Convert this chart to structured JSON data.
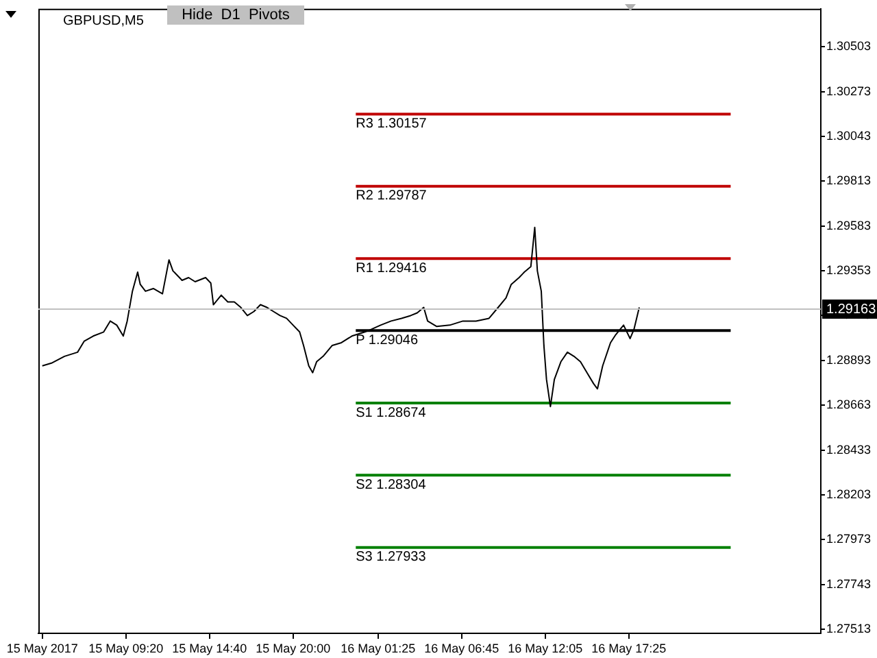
{
  "chart_data": {
    "type": "line",
    "title": "GBPUSD,M5",
    "annotations": [
      "Hide  D1  Pivots"
    ],
    "xlim": [
      "2017-05-15T03:45",
      "2017-05-17T05:40"
    ],
    "xticks": [
      {
        "value": "2017-05-15T04:00",
        "label": "15 May 2017"
      },
      {
        "value": "2017-05-15T09:20",
        "label": "15 May 09:20"
      },
      {
        "value": "2017-05-15T14:40",
        "label": "15 May 14:40"
      },
      {
        "value": "2017-05-15T20:00",
        "label": "15 May 20:00"
      },
      {
        "value": "2017-05-16T01:25",
        "label": "16 May 01:25"
      },
      {
        "value": "2017-05-16T06:45",
        "label": "16 May 06:45"
      },
      {
        "value": "2017-05-16T12:05",
        "label": "16 May 12:05"
      },
      {
        "value": "2017-05-16T17:25",
        "label": "16 May 17:25"
      }
    ],
    "ylim": [
      1.27492,
      1.30698
    ],
    "yticks": [
      1.27513,
      1.27743,
      1.27973,
      1.28203,
      1.28433,
      1.28663,
      1.28893,
      1.29123,
      1.29353,
      1.29583,
      1.29813,
      1.30043,
      1.30273,
      1.30503
    ],
    "grid": false,
    "legend": false,
    "marker": "none",
    "line_style": "solid",
    "ref_lines": [
      {
        "axis": "y",
        "value": 1.29163,
        "label": "1.29163",
        "color": "#c0c0c0"
      }
    ],
    "series": [
      {
        "color": "#000000",
        "x": [
          "2017-05-15T04:00",
          "2017-05-15T04:35",
          "2017-05-15T05:25",
          "2017-05-15T06:15",
          "2017-05-15T06:40",
          "2017-05-15T07:15",
          "2017-05-15T07:55",
          "2017-05-15T08:20",
          "2017-05-15T08:45",
          "2017-05-15T09:10",
          "2017-05-15T09:25",
          "2017-05-15T09:45",
          "2017-05-15T10:05",
          "2017-05-15T10:15",
          "2017-05-15T10:35",
          "2017-05-15T11:05",
          "2017-05-15T11:40",
          "2017-05-15T12:05",
          "2017-05-15T12:20",
          "2017-05-15T12:55",
          "2017-05-15T13:20",
          "2017-05-15T13:45",
          "2017-05-15T14:25",
          "2017-05-15T14:45",
          "2017-05-15T14:55",
          "2017-05-15T15:25",
          "2017-05-15T15:50",
          "2017-05-15T16:15",
          "2017-05-15T16:40",
          "2017-05-15T17:05",
          "2017-05-15T17:30",
          "2017-05-15T17:55",
          "2017-05-15T18:20",
          "2017-05-15T18:45",
          "2017-05-15T19:10",
          "2017-05-15T19:35",
          "2017-05-15T20:00",
          "2017-05-15T20:25",
          "2017-05-15T20:40",
          "2017-05-15T21:00",
          "2017-05-15T21:15",
          "2017-05-15T21:30",
          "2017-05-15T21:55",
          "2017-05-15T22:30",
          "2017-05-15T23:05",
          "2017-05-15T23:45",
          "2017-05-16T00:35",
          "2017-05-16T01:00",
          "2017-05-16T01:35",
          "2017-05-16T02:15",
          "2017-05-16T02:55",
          "2017-05-16T03:30",
          "2017-05-16T03:55",
          "2017-05-16T04:20",
          "2017-05-16T04:35",
          "2017-05-16T05:10",
          "2017-05-16T06:00",
          "2017-05-16T06:50",
          "2017-05-16T07:40",
          "2017-05-16T08:30",
          "2017-05-16T09:05",
          "2017-05-16T09:35",
          "2017-05-16T09:55",
          "2017-05-16T10:25",
          "2017-05-16T10:45",
          "2017-05-16T11:10",
          "2017-05-16T11:25",
          "2017-05-16T11:35",
          "2017-05-16T11:50",
          "2017-05-16T12:00",
          "2017-05-16T12:10",
          "2017-05-16T12:25",
          "2017-05-16T12:40",
          "2017-05-16T13:05",
          "2017-05-16T13:30",
          "2017-05-16T13:55",
          "2017-05-16T14:20",
          "2017-05-16T14:45",
          "2017-05-16T15:10",
          "2017-05-16T15:25",
          "2017-05-16T15:45",
          "2017-05-16T16:15",
          "2017-05-16T16:35",
          "2017-05-16T17:05",
          "2017-05-16T17:30",
          "2017-05-16T17:45",
          "2017-05-16T18:05"
        ],
        "values": [
          1.28865,
          1.28879,
          1.28914,
          1.28935,
          1.28991,
          1.29018,
          1.29039,
          1.29095,
          1.29074,
          1.29018,
          1.29095,
          1.29248,
          1.29346,
          1.29283,
          1.29248,
          1.29262,
          1.29235,
          1.29409,
          1.29353,
          1.29304,
          1.29318,
          1.29297,
          1.29318,
          1.2929,
          1.29179,
          1.29228,
          1.29193,
          1.29193,
          1.29165,
          1.29123,
          1.29144,
          1.29179,
          1.29165,
          1.29144,
          1.29123,
          1.29109,
          1.29074,
          1.29039,
          1.2897,
          1.28865,
          1.2883,
          1.28886,
          1.28914,
          1.2897,
          1.28984,
          1.29018,
          1.29039,
          1.29053,
          1.29074,
          1.29095,
          1.29109,
          1.29123,
          1.29137,
          1.29165,
          1.29095,
          1.29067,
          1.29074,
          1.29095,
          1.29095,
          1.29109,
          1.29165,
          1.29214,
          1.29283,
          1.29318,
          1.29346,
          1.29374,
          1.29576,
          1.29353,
          1.29248,
          1.2897,
          1.28795,
          1.28656,
          1.28795,
          1.28886,
          1.28935,
          1.28914,
          1.28886,
          1.2883,
          1.28774,
          1.28747,
          1.28865,
          1.28984,
          1.29025,
          1.29074,
          1.29005,
          1.29053,
          1.29165
        ]
      },
      {
        "name": "R3 1.30157",
        "color": "#c00000",
        "x": [
          "2017-05-16T00:00",
          "2017-05-16T23:55"
        ],
        "values": [
          1.30157,
          1.30157
        ]
      },
      {
        "name": "R2 1.29787",
        "color": "#c00000",
        "x": [
          "2017-05-16T00:00",
          "2017-05-16T23:55"
        ],
        "values": [
          1.29787,
          1.29787
        ]
      },
      {
        "name": "R1 1.29416",
        "color": "#c00000",
        "x": [
          "2017-05-16T00:00",
          "2017-05-16T23:55"
        ],
        "values": [
          1.29416,
          1.29416
        ]
      },
      {
        "name": "P 1.29046",
        "color": "#000000",
        "x": [
          "2017-05-16T00:00",
          "2017-05-16T23:55"
        ],
        "values": [
          1.29046,
          1.29046
        ]
      },
      {
        "name": "S1 1.28674",
        "color": "#008000",
        "x": [
          "2017-05-16T00:00",
          "2017-05-16T23:55"
        ],
        "values": [
          1.28674,
          1.28674
        ]
      },
      {
        "name": "S2 1.28304",
        "color": "#008000",
        "x": [
          "2017-05-16T00:00",
          "2017-05-16T23:55"
        ],
        "values": [
          1.28304,
          1.28304
        ]
      },
      {
        "name": "S3 1.27933",
        "color": "#008000",
        "x": [
          "2017-05-16T00:00",
          "2017-05-16T23:55"
        ],
        "values": [
          1.27933,
          1.27933
        ]
      }
    ]
  }
}
